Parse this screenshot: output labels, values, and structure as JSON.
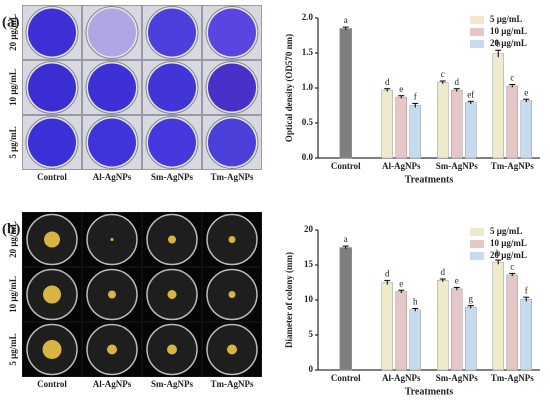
{
  "photo_panels": [
    {
      "label": "(a)",
      "rows": [
        "20 μg/mL",
        "10 μg/mL",
        "5 μg/mL"
      ],
      "columns": [
        "Control",
        "Al-AgNPs",
        "Sm-AgNPs",
        "Tm-AgNPs"
      ]
    },
    {
      "label": "(b)",
      "rows": [
        "20 μg/mL",
        "10 μg/mL",
        "5 μg/mL"
      ],
      "columns": [
        "Control",
        "Al-AgNPs",
        "Sm-AgNPs",
        "Tm-AgNPs"
      ]
    }
  ],
  "chart_data": [
    {
      "type": "bar",
      "ylabel": "Optical density (OD570 nm)",
      "xlabel": "Treatments",
      "categories": [
        "Control",
        "Al-AgNPs",
        "Sm-AgNPs",
        "Tm-AgNPs"
      ],
      "control": {
        "value": 1.85,
        "error": 0.02,
        "letter": "a",
        "color": "#7f7f7f"
      },
      "series": [
        {
          "name": "5 μg/mL",
          "color": "#efeacb",
          "values": [
            null,
            0.97,
            1.08,
            1.49
          ],
          "errors": [
            null,
            0.02,
            0.02,
            0.05
          ],
          "letters": [
            null,
            "d",
            "c",
            "b"
          ]
        },
        {
          "name": "10 μg/mL",
          "color": "#e6c6c6",
          "values": [
            null,
            0.87,
            0.97,
            1.03
          ],
          "errors": [
            null,
            0.02,
            0.02,
            0.02
          ],
          "letters": [
            null,
            "e",
            "d",
            "c"
          ]
        },
        {
          "name": "20 μg/mL",
          "color": "#c6dbef",
          "values": [
            null,
            0.75,
            0.79,
            0.82
          ],
          "errors": [
            null,
            0.03,
            0.02,
            0.02
          ],
          "letters": [
            null,
            "f",
            "ef",
            "e"
          ]
        }
      ],
      "ylim": [
        0,
        2
      ],
      "yticks": [
        {
          "value": 0,
          "label": "0.0"
        },
        {
          "value": 0.5,
          "label": "0.5"
        },
        {
          "value": 1,
          "label": "1.0"
        },
        {
          "value": 1.5,
          "label": "1.5"
        },
        {
          "value": 2,
          "label": "2.0"
        }
      ],
      "legend": "upper right"
    },
    {
      "type": "bar",
      "ylabel": "Diameter of colony (mm)",
      "xlabel": "Treatments",
      "categories": [
        "Control",
        "Al-AgNPs",
        "Sm-AgNPs",
        "Tm-AgNPs"
      ],
      "control": {
        "value": 17.5,
        "error": 0.2,
        "letter": "a",
        "color": "#7f7f7f"
      },
      "series": [
        {
          "name": "5 μg/mL",
          "color": "#efeacb",
          "values": [
            null,
            12.5,
            12.8,
            15.4
          ],
          "errors": [
            null,
            0.3,
            0.2,
            0.3
          ],
          "letters": [
            null,
            "d",
            "d",
            "b"
          ]
        },
        {
          "name": "10 μg/mL",
          "color": "#e6c6c6",
          "values": [
            null,
            11.2,
            11.6,
            13.6
          ],
          "errors": [
            null,
            0.2,
            0.2,
            0.2
          ],
          "letters": [
            null,
            "e",
            "e",
            "c"
          ]
        },
        {
          "name": "20 μg/mL",
          "color": "#c6dbef",
          "values": [
            null,
            8.6,
            9.0,
            10.1
          ],
          "errors": [
            null,
            0.2,
            0.2,
            0.3
          ],
          "letters": [
            null,
            "h",
            "g",
            "f"
          ]
        }
      ],
      "ylim": [
        0,
        20
      ],
      "yticks": [
        0,
        5,
        10,
        15,
        20
      ],
      "legend": "upper right"
    }
  ]
}
